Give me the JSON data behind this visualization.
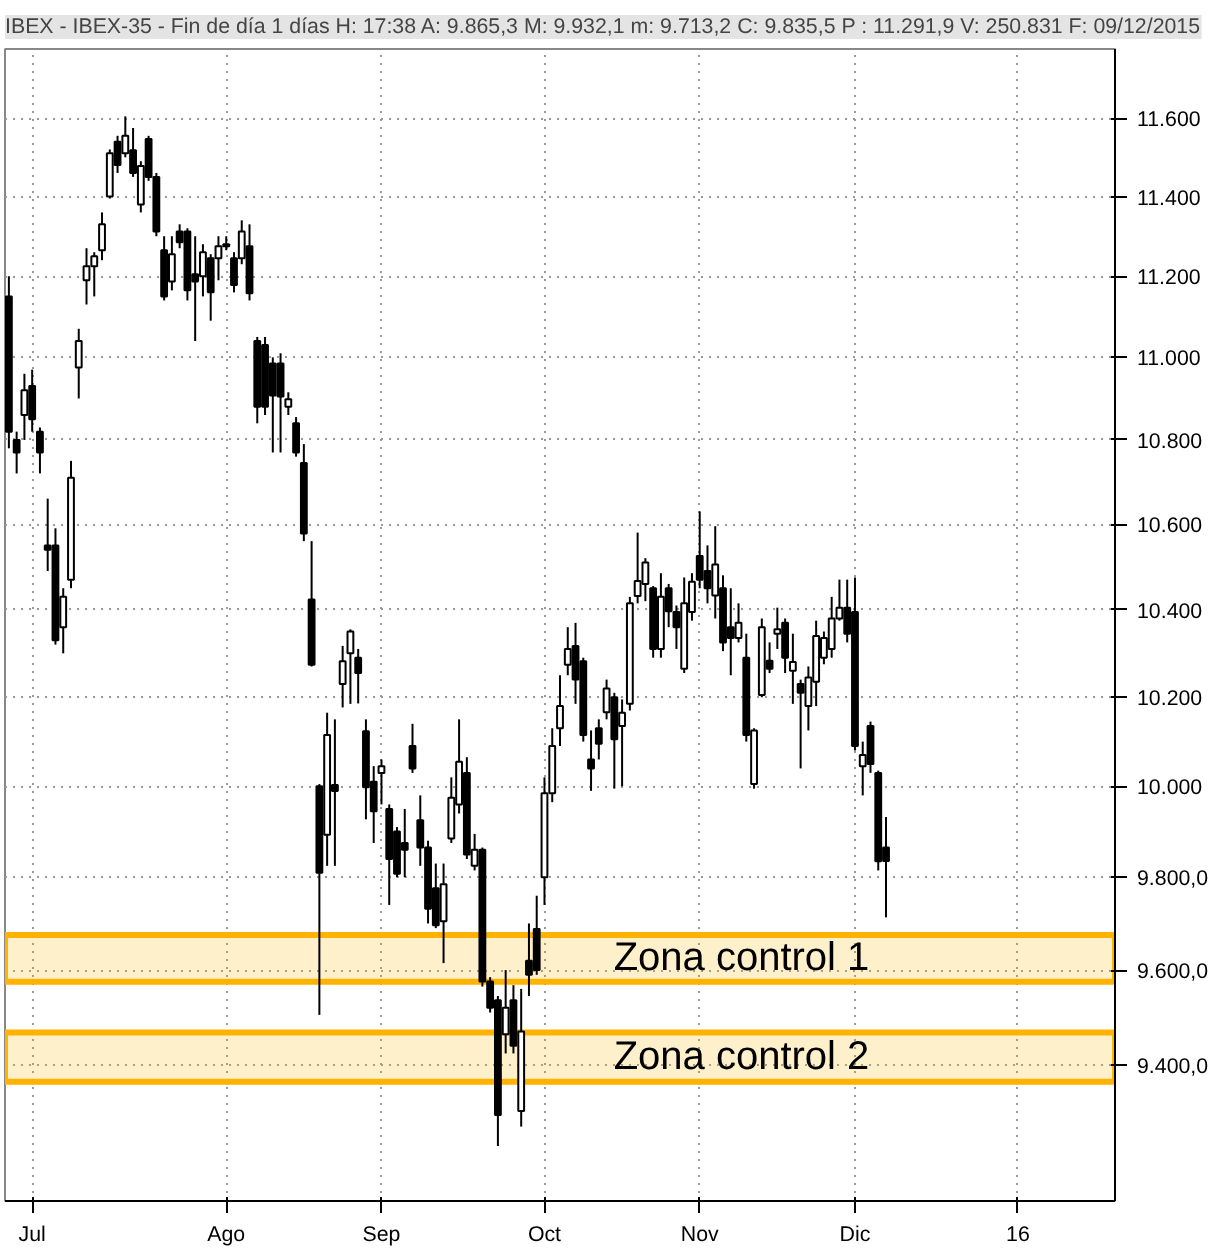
{
  "chart_data": {
    "type": "candlestick",
    "title": "IBEX - IBEX-35 - Fin de día 1 días H: 17:38 A: 9.865,3 M: 9.932,1 m: 9.713,2 C: 9.835,5 P : 11.291,9 V: 250.831 F: 09/12/2015",
    "categories": [
      null,
      null,
      null,
      "Jul",
      null,
      null,
      null,
      null,
      null,
      null,
      null,
      null,
      null,
      null,
      null,
      null,
      null,
      null,
      null,
      null,
      null,
      null,
      null,
      null,
      null,
      null,
      null,
      null,
      "Ago",
      null,
      null,
      null,
      null,
      null,
      null,
      null,
      null,
      null,
      null,
      null,
      null,
      null,
      null,
      null,
      null,
      null,
      null,
      null,
      "Sep",
      null,
      null,
      null,
      null,
      null,
      null,
      null,
      null,
      null,
      null,
      null,
      null,
      null,
      null,
      null,
      null,
      null,
      null,
      null,
      null,
      "Oct",
      null,
      null,
      null,
      null,
      null,
      null,
      null,
      null,
      null,
      null,
      null,
      null,
      null,
      null,
      null,
      null,
      null,
      null,
      null,
      "Nov",
      null,
      null,
      null,
      null,
      null,
      null,
      null,
      null,
      null,
      null,
      null,
      null,
      null,
      null,
      null,
      null,
      null,
      null,
      null,
      "Dic",
      null,
      null,
      null,
      null,
      null,
      null,
      null,
      null,
      null,
      null,
      null,
      null,
      null,
      null,
      null,
      null,
      null,
      null,
      null,
      null,
      "16",
      null,
      null,
      null,
      null,
      null,
      null,
      null,
      null,
      null,
      null,
      null,
      null
    ],
    "ohlc": [
      [
        11150,
        11200,
        10780,
        10820
      ],
      [
        10800,
        10820,
        10720,
        10770
      ],
      [
        10860,
        10960,
        10800,
        10920
      ],
      [
        10930,
        10970,
        10820,
        10850
      ],
      [
        10820,
        10830,
        10720,
        10770
      ],
      [
        10550,
        10660,
        10490,
        10540
      ],
      [
        10550,
        10590,
        10320,
        10330
      ],
      [
        10360,
        10450,
        10300,
        10430
      ],
      [
        10470,
        10750,
        10450,
        10710
      ],
      [
        10975,
        11070,
        10900,
        11040
      ],
      [
        11190,
        11270,
        11130,
        11225
      ],
      [
        11225,
        11260,
        11150,
        11250
      ],
      [
        11265,
        11360,
        11240,
        11330
      ],
      [
        11400,
        11520,
        11395,
        11510
      ],
      [
        11540,
        11555,
        11460,
        11480
      ],
      [
        11510,
        11605,
        11500,
        11555
      ],
      [
        11518,
        11575,
        11450,
        11460
      ],
      [
        11380,
        11490,
        11360,
        11478
      ],
      [
        11547,
        11555,
        11440,
        11450
      ],
      [
        11450,
        11460,
        11300,
        11312
      ],
      [
        11265,
        11300,
        11140,
        11150
      ],
      [
        11187,
        11300,
        11165,
        11255
      ],
      [
        11312,
        11330,
        11270,
        11285
      ],
      [
        11312,
        11320,
        11140,
        11165
      ],
      [
        11205,
        11300,
        11040,
        11187
      ],
      [
        11200,
        11280,
        11150,
        11260
      ],
      [
        11245,
        11255,
        11090,
        11160
      ],
      [
        11245,
        11300,
        11190,
        11275
      ],
      [
        11275,
        11300,
        11265,
        11280
      ],
      [
        11245,
        11260,
        11160,
        11178
      ],
      [
        11245,
        11340,
        11230,
        11312
      ],
      [
        11275,
        11330,
        11140,
        11158
      ],
      [
        11040,
        11050,
        10840,
        10880
      ],
      [
        11030,
        11050,
        10860,
        10880
      ],
      [
        10985,
        11000,
        10770,
        10907
      ],
      [
        10985,
        11010,
        10770,
        10905
      ],
      [
        10880,
        10915,
        10860,
        10898
      ],
      [
        10840,
        10855,
        10760,
        10770
      ],
      [
        10745,
        10790,
        10560,
        10578
      ],
      [
        10424,
        10560,
        10270,
        10274
      ],
      [
        10000,
        10005,
        9505,
        9810
      ],
      [
        9893,
        10165,
        9825,
        10115
      ],
      [
        10003,
        10150,
        9825,
        9990
      ],
      [
        10230,
        10317,
        10177,
        10282
      ],
      [
        10300,
        10355,
        10185,
        10350
      ],
      [
        10290,
        10310,
        10186,
        10255
      ],
      [
        10123,
        10150,
        9927,
        9998
      ],
      [
        10010,
        10045,
        9875,
        9945
      ],
      [
        10030,
        10060,
        9960,
        10045
      ],
      [
        9950,
        9960,
        9740,
        9840
      ],
      [
        9900,
        9910,
        9800,
        9808
      ],
      [
        9875,
        9950,
        9800,
        9860
      ],
      [
        10090,
        10140,
        10030,
        10040
      ],
      [
        9925,
        9980,
        9825,
        9865
      ],
      [
        9865,
        9880,
        9700,
        9732
      ],
      [
        9776,
        9830,
        9690,
        9696
      ],
      [
        9705,
        9830,
        9615,
        9785
      ],
      [
        9885,
        10020,
        9875,
        9975
      ],
      [
        9960,
        10150,
        9940,
        10055
      ],
      [
        10030,
        10065,
        9840,
        9850
      ],
      [
        9825,
        9895,
        9815,
        9860
      ],
      [
        9860,
        9865,
        9565,
        9576
      ],
      [
        9576,
        9585,
        9510,
        9520
      ],
      [
        9536,
        9545,
        9232,
        9296
      ],
      [
        9464,
        9600,
        9424,
        9520
      ],
      [
        9536,
        9568,
        9424,
        9440
      ],
      [
        9304,
        9560,
        9272,
        9470
      ],
      [
        9620,
        9700,
        9545,
        9590
      ],
      [
        9688,
        9760,
        9590,
        9600
      ],
      [
        9800,
        10020,
        9740,
        9985
      ],
      [
        9985,
        10130,
        9965,
        10090
      ],
      [
        10130,
        10250,
        10090,
        10180
      ],
      [
        10274,
        10360,
        10250,
        10310
      ],
      [
        10317,
        10370,
        10185,
        10240
      ],
      [
        10282,
        10290,
        10100,
        10115
      ],
      [
        10060,
        10125,
        9990,
        10040
      ],
      [
        10130,
        10150,
        10060,
        10095
      ],
      [
        10166,
        10240,
        10150,
        10220
      ],
      [
        10200,
        10210,
        9995,
        10105
      ],
      [
        10135,
        10195,
        10000,
        10165
      ],
      [
        10185,
        10430,
        10170,
        10415
      ],
      [
        10432,
        10580,
        10415,
        10467
      ],
      [
        10460,
        10520,
        10420,
        10510
      ],
      [
        10450,
        10455,
        10290,
        10310
      ],
      [
        10310,
        10485,
        10290,
        10430
      ],
      [
        10450,
        10460,
        10360,
        10397
      ],
      [
        10395,
        10410,
        10310,
        10360
      ],
      [
        10265,
        10475,
        10255,
        10415
      ],
      [
        10395,
        10485,
        10375,
        10465
      ],
      [
        10525,
        10630,
        10450,
        10470
      ],
      [
        10490,
        10550,
        10415,
        10450
      ],
      [
        10433,
        10595,
        10380,
        10505
      ],
      [
        10450,
        10480,
        10305,
        10325
      ],
      [
        10360,
        10450,
        10250,
        10335
      ],
      [
        10335,
        10415,
        10325,
        10370
      ],
      [
        10290,
        10345,
        10100,
        10115
      ],
      [
        10005,
        10130,
        9995,
        10125
      ],
      [
        10205,
        10380,
        10200,
        10360
      ],
      [
        10283,
        10325,
        10255,
        10265
      ],
      [
        10345,
        10405,
        10310,
        10355
      ],
      [
        10370,
        10380,
        10255,
        10290
      ],
      [
        10260,
        10345,
        10185,
        10280
      ],
      [
        10230,
        10240,
        10040,
        10210
      ],
      [
        10180,
        10270,
        10125,
        10245
      ],
      [
        10235,
        10375,
        10180,
        10340
      ],
      [
        10290,
        10350,
        10275,
        10335
      ],
      [
        10310,
        10430,
        10290,
        10380
      ],
      [
        10380,
        10470,
        10375,
        10405
      ],
      [
        10405,
        10470,
        10325,
        10345
      ],
      [
        10395,
        10475,
        10080,
        10090
      ],
      [
        10045,
        10100,
        9980,
        10070
      ],
      [
        10135,
        10145,
        10030,
        10050
      ],
      [
        10030,
        10035,
        9815,
        9835
      ],
      [
        9865.3,
        9932.1,
        9713.2,
        9835.5
      ],
      null,
      null,
      null,
      null,
      null,
      null,
      null,
      null,
      null,
      null,
      null,
      null,
      null,
      null,
      null,
      null,
      null,
      null,
      null,
      null,
      null,
      null,
      null,
      null,
      null,
      null,
      null,
      null,
      null
    ],
    "ylim": [
      9120,
      11780
    ],
    "log": true,
    "yticks": [
      {
        "value": 9400,
        "label": "9.400,0"
      },
      {
        "value": 9600,
        "label": "9.600,0"
      },
      {
        "value": 9800,
        "label": "9.800,0"
      },
      {
        "value": 10000,
        "label": "10.000"
      },
      {
        "value": 10200,
        "label": "10.200"
      },
      {
        "value": 10400,
        "label": "10.400"
      },
      {
        "value": 10600,
        "label": "10.600"
      },
      {
        "value": 10800,
        "label": "10.800"
      },
      {
        "value": 11000,
        "label": "11.000"
      },
      {
        "value": 11200,
        "label": "11.200"
      },
      {
        "value": 11400,
        "label": "11.400"
      },
      {
        "value": 11600,
        "label": "11.600"
      }
    ],
    "bands": [
      {
        "axis": "y",
        "from": 9575,
        "to": 9675,
        "label": "Zona control 1",
        "color": "#ffb300"
      },
      {
        "axis": "y",
        "from": 9365,
        "to": 9468,
        "label": "Zona control 2",
        "color": "#ffb300"
      }
    ],
    "grid": true
  }
}
